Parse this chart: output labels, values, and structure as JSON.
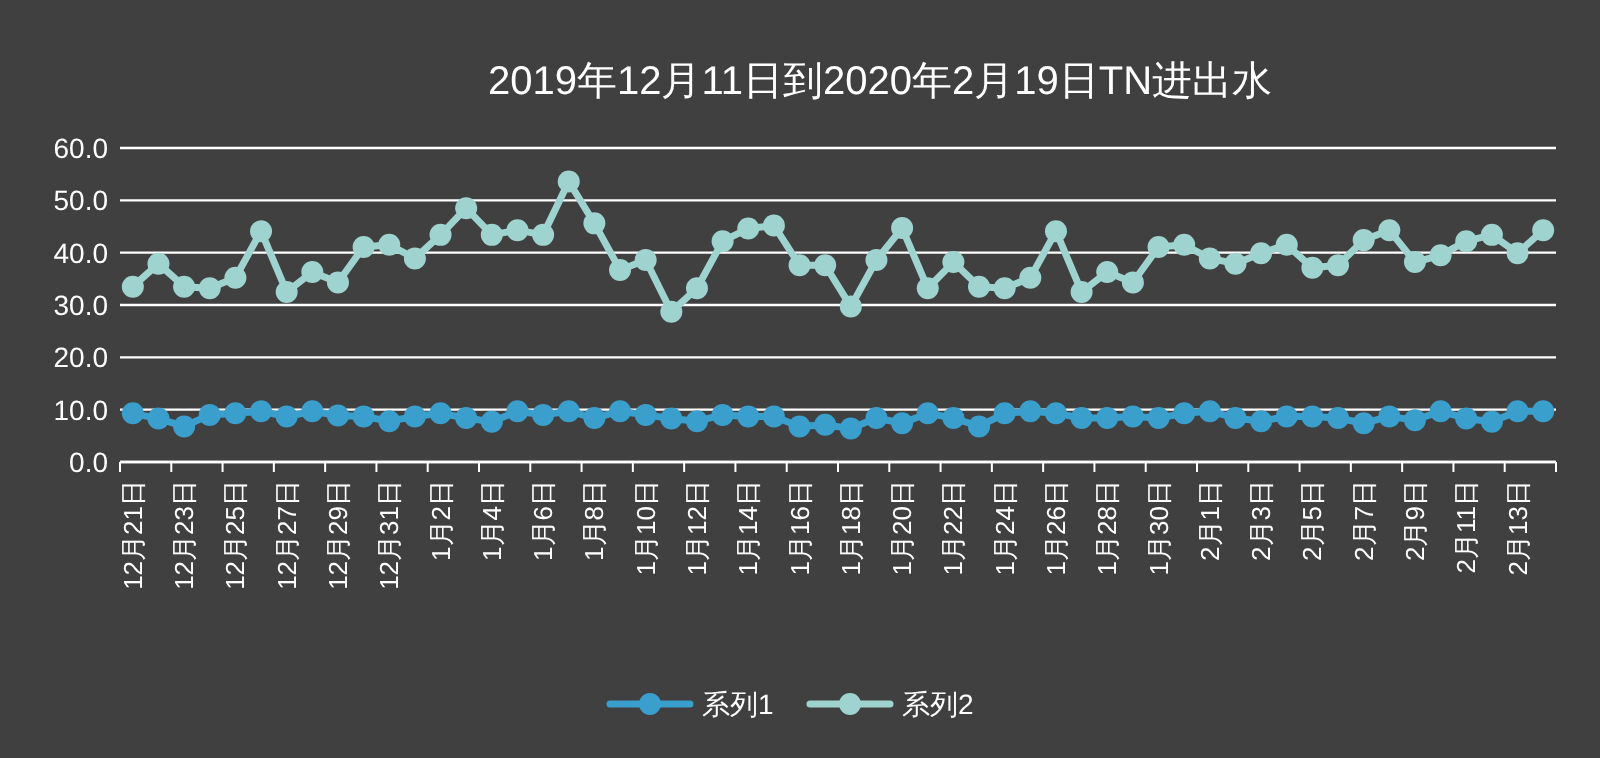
{
  "chart_data": {
    "type": "line",
    "title": "2019年12月11日到2020年2月19日TN进出水",
    "categories": [
      "12月21日",
      null,
      "12月23日",
      null,
      "12月25日",
      null,
      "12月27日",
      null,
      "12月29日",
      null,
      "12月31日",
      null,
      "1月2日",
      null,
      "1月4日",
      null,
      "1月6日",
      null,
      "1月8日",
      null,
      "1月10日",
      null,
      "1月12日",
      null,
      "1月14日",
      null,
      "1月16日",
      null,
      "1月18日",
      null,
      "1月20日",
      null,
      "1月22日",
      null,
      "1月24日",
      null,
      "1月26日",
      null,
      "1月28日",
      null,
      "1月30日",
      null,
      "2月1日",
      null,
      "2月3日",
      null,
      "2月5日",
      null,
      "2月7日",
      null,
      "2月9日",
      null,
      "2月11日",
      null,
      "2月13日",
      null
    ],
    "series": [
      {
        "name": "系列1",
        "color": "#3a9fcd",
        "values": [
          9.3,
          8.3,
          6.8,
          9.0,
          9.3,
          9.7,
          8.7,
          9.7,
          8.9,
          8.7,
          7.8,
          8.7,
          9.3,
          8.4,
          7.7,
          9.7,
          9.0,
          9.7,
          8.4,
          9.7,
          9.0,
          8.3,
          7.8,
          9.0,
          8.7,
          8.7,
          6.8,
          7.1,
          6.4,
          8.4,
          7.4,
          9.3,
          8.4,
          6.8,
          9.3,
          9.7,
          9.3,
          8.4,
          8.4,
          8.7,
          8.4,
          9.3,
          9.7,
          8.4,
          7.8,
          8.7,
          8.7,
          8.4,
          7.4,
          8.7,
          8.0,
          9.7,
          8.3,
          7.7,
          9.7,
          9.7
        ]
      },
      {
        "name": "系列2",
        "color": "#9fd3cf",
        "values": [
          33.5,
          37.9,
          33.5,
          33.2,
          35.2,
          44.1,
          32.5,
          36.3,
          34.3,
          41.1,
          41.5,
          38.9,
          43.4,
          48.5,
          43.4,
          44.3,
          43.4,
          53.6,
          45.6,
          36.7,
          38.6,
          28.7,
          33.2,
          42.2,
          44.6,
          45.2,
          37.6,
          37.6,
          29.7,
          38.6,
          44.7,
          33.2,
          38.2,
          33.5,
          33.2,
          35.2,
          44.1,
          32.5,
          36.3,
          34.3,
          41.1,
          41.5,
          38.9,
          37.9,
          39.9,
          41.5,
          37.1,
          37.6,
          42.4,
          44.3,
          38.2,
          39.5,
          42.2,
          43.4,
          39.9,
          44.3
        ]
      }
    ],
    "ylim": [
      0,
      60
    ],
    "yticks": [
      {
        "value": 0,
        "label": "0.0"
      },
      {
        "value": 10,
        "label": "10.0"
      },
      {
        "value": 20,
        "label": "20.0"
      },
      {
        "value": 30,
        "label": "30.0"
      },
      {
        "value": 40,
        "label": "40.0"
      },
      {
        "value": 50,
        "label": "50.0"
      },
      {
        "value": 60,
        "label": "60.0"
      }
    ],
    "grid": "y",
    "legend": "bottom",
    "marker": "circle"
  }
}
